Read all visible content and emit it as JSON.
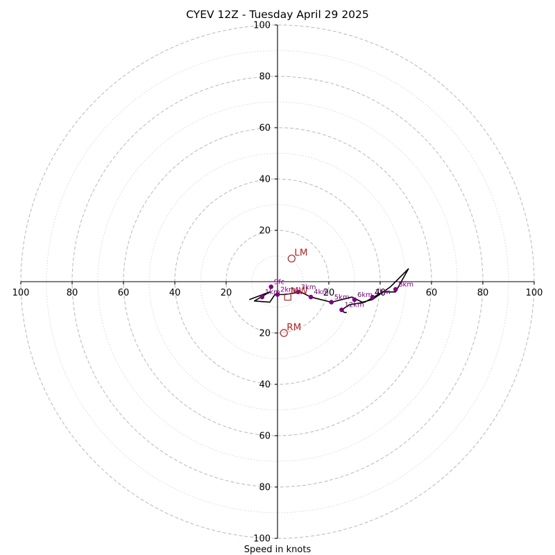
{
  "chart_data": {
    "type": "scatter",
    "subtype": "hodograph",
    "title": "CYEV 12Z - Tuesday April 29 2025",
    "xlabel": "Speed in knots",
    "xlim": [
      -100,
      100
    ],
    "ylim": [
      -100,
      100
    ],
    "axis_ticks": {
      "x": [
        100,
        80,
        60,
        40,
        20,
        20,
        40,
        60,
        80,
        100
      ],
      "y": [
        100,
        80,
        60,
        40,
        20,
        20,
        40,
        60,
        80,
        100
      ]
    },
    "tick_values": [
      -100,
      -80,
      -60,
      -40,
      -20,
      20,
      40,
      60,
      80,
      100
    ],
    "rings": {
      "major": [
        20,
        40,
        60,
        80,
        100
      ],
      "minor": [
        10,
        30,
        50,
        70,
        90
      ]
    },
    "wind_trace": {
      "color": "#000000",
      "points": [
        [
          -11,
          -7
        ],
        [
          -3,
          -4
        ],
        [
          -9,
          -7.5
        ],
        [
          -3,
          -8
        ],
        [
          -1,
          -5
        ],
        [
          3,
          -5
        ],
        [
          9,
          -4
        ],
        [
          13,
          -6
        ],
        [
          21,
          -8
        ],
        [
          29,
          -6
        ],
        [
          33,
          -8
        ],
        [
          37,
          -7
        ],
        [
          44,
          -2
        ],
        [
          51,
          5
        ],
        [
          46,
          -4
        ],
        [
          41,
          -4
        ],
        [
          34,
          -8
        ],
        [
          28,
          -9
        ],
        [
          25,
          -11
        ],
        [
          26,
          -12
        ],
        [
          27,
          -12
        ]
      ]
    },
    "height_points": {
      "color": "#800080",
      "points": [
        {
          "x": -2.5,
          "y": -2,
          "label": "Sfc"
        },
        {
          "x": -6,
          "y": -6,
          "label": "1km"
        },
        {
          "x": 0,
          "y": -5,
          "label": "2km"
        },
        {
          "x": 8,
          "y": -4,
          "label": "3km"
        },
        {
          "x": 13,
          "y": -6,
          "label": "4km"
        },
        {
          "x": 21,
          "y": -8,
          "label": "5km"
        },
        {
          "x": 30,
          "y": -7,
          "label": "6km"
        },
        {
          "x": 37,
          "y": -6,
          "label": "7km"
        },
        {
          "x": 46,
          "y": -3,
          "label": "8km"
        },
        {
          "x": 25,
          "y": -11,
          "label": "12km"
        }
      ]
    },
    "storm_motion": {
      "color": "#b22222",
      "markers": [
        {
          "x": 5.5,
          "y": 9,
          "label": "LM",
          "shape": "circle"
        },
        {
          "x": 2.5,
          "y": -20,
          "label": "RM",
          "shape": "circle"
        },
        {
          "x": 4,
          "y": -6,
          "label": "MW",
          "shape": "square"
        }
      ]
    },
    "grid": true
  }
}
